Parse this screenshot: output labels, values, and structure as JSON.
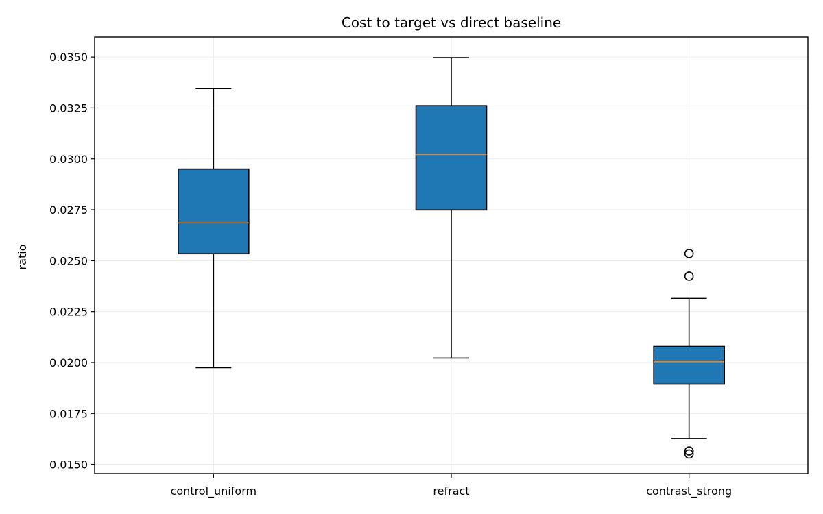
{
  "chart_data": {
    "type": "box",
    "title": "Cost to target vs direct baseline",
    "xlabel": "",
    "ylabel": "ratio",
    "ylim": [
      0.01455,
      0.03598
    ],
    "yticks": [
      0.015,
      0.0175,
      0.02,
      0.0225,
      0.025,
      0.0275,
      0.03,
      0.0325,
      0.035
    ],
    "ytick_labels": [
      "0.0150",
      "0.0175",
      "0.0200",
      "0.0225",
      "0.0250",
      "0.0275",
      "0.0300",
      "0.0325",
      "0.0350"
    ],
    "grid": true,
    "categories": [
      "control_uniform",
      "refract",
      "contrast_strong"
    ],
    "boxes": [
      {
        "whisker_low": 0.01975,
        "q1": 0.02534,
        "median": 0.02685,
        "q3": 0.0295,
        "whisker_high": 0.03345,
        "outliers": []
      },
      {
        "whisker_low": 0.02022,
        "q1": 0.02749,
        "median": 0.03021,
        "q3": 0.03261,
        "whisker_high": 0.03497,
        "outliers": []
      },
      {
        "whisker_low": 0.01627,
        "q1": 0.01894,
        "median": 0.02004,
        "q3": 0.02079,
        "whisker_high": 0.02315,
        "outliers": [
          0.02535,
          0.02424,
          0.01566,
          0.01551
        ]
      }
    ],
    "colors": {
      "box_fill": "#1f77b4",
      "median": "#ff7f0e",
      "edge": "#000000",
      "grid": "#ebebeb"
    }
  }
}
